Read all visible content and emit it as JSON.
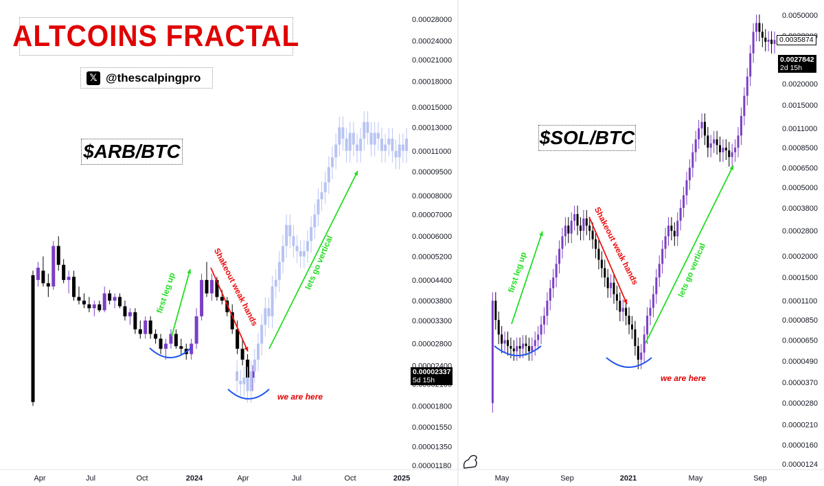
{
  "header": {
    "title": "ALTCOINS FRACTAL",
    "handle": "@thescalpingpro",
    "x_logo": "x-logo-icon"
  },
  "colors": {
    "title": "#e00000",
    "candle_up": "#7b3fc4",
    "candle_down": "#000000",
    "projection": "#b8c4f2",
    "arrow_up": "#22dd22",
    "arrow_down": "#ee1111",
    "bottom_arc": "#2255ee"
  },
  "chart_data": [
    {
      "type": "candlestick",
      "pair": "$ARB/BTC",
      "yscale": "log",
      "y_ticks": [
        "0.00028000",
        "0.00024000",
        "0.00021000",
        "0.00018000",
        "0.00015000",
        "0.00013000",
        "0.00011000",
        "0.00009500",
        "0.00008000",
        "0.00007000",
        "0.00006000",
        "0.00005200",
        "0.00004400",
        "0.00003800",
        "0.00003300",
        "0.00002800",
        "0.00002400",
        "0.00002100",
        "0.00001800",
        "0.00001550",
        "0.00001350",
        "0.00001180"
      ],
      "x_ticks": [
        "Apr",
        "Jul",
        "Oct",
        "2024",
        "Apr",
        "Jul",
        "Oct",
        "2025"
      ],
      "last_price": "0.00002337",
      "countdown": "5d 15h",
      "annotations": {
        "first_leg": "first leg up",
        "shakeout": "Shakeout weak hands",
        "vertical": "lets go vertical",
        "here": "we are here"
      },
      "candles_ohlc": [
        [
          4.55e-05,
          4.7e-05,
          1.8e-05,
          1.85e-05
        ],
        [
          4.4e-05,
          5e-05,
          4.2e-05,
          4.8e-05
        ],
        [
          4.7e-05,
          5.2e-05,
          4.2e-05,
          4.3e-05
        ],
        [
          4.3e-05,
          4.6e-05,
          3.9e-05,
          4.2e-05
        ],
        [
          4.2e-05,
          5.8e-05,
          4.1e-05,
          5.6e-05
        ],
        [
          5.6e-05,
          6e-05,
          4.7e-05,
          4.9e-05
        ],
        [
          4.9e-05,
          5.1e-05,
          4.3e-05,
          4.4e-05
        ],
        [
          4.4e-05,
          4.7e-05,
          4e-05,
          4.5e-05
        ],
        [
          4.5e-05,
          4.7e-05,
          3.8e-05,
          3.9e-05
        ],
        [
          3.9e-05,
          4.2e-05,
          3.7e-05,
          3.8e-05
        ],
        [
          3.8e-05,
          4e-05,
          3.6e-05,
          3.7e-05
        ],
        [
          3.7e-05,
          3.9e-05,
          3.5e-05,
          3.6e-05
        ],
        [
          3.6e-05,
          3.8e-05,
          3.4e-05,
          3.7e-05
        ],
        [
          3.7e-05,
          3.8e-05,
          3.5e-05,
          3.55e-05
        ],
        [
          3.55e-05,
          4.2e-05,
          3.5e-05,
          4e-05
        ],
        [
          4e-05,
          4.1e-05,
          3.7e-05,
          3.8e-05
        ],
        [
          3.8e-05,
          4e-05,
          3.6e-05,
          3.9e-05
        ],
        [
          3.9e-05,
          4e-05,
          3.6e-05,
          3.65e-05
        ],
        [
          3.65e-05,
          3.8e-05,
          3.3e-05,
          3.4e-05
        ],
        [
          3.4e-05,
          3.6e-05,
          3.2e-05,
          3.5e-05
        ],
        [
          3.5e-05,
          3.6e-05,
          3e-05,
          3.1e-05
        ],
        [
          3.1e-05,
          3.3e-05,
          2.9e-05,
          3e-05
        ],
        [
          3e-05,
          3.4e-05,
          2.9e-05,
          3.3e-05
        ],
        [
          3.3e-05,
          3.4e-05,
          2.9e-05,
          3e-05
        ],
        [
          3e-05,
          3.1e-05,
          2.8e-05,
          2.9e-05
        ],
        [
          2.9e-05,
          3e-05,
          2.6e-05,
          2.7e-05
        ],
        [
          2.7e-05,
          2.9e-05,
          2.5e-05,
          2.8e-05
        ],
        [
          2.8e-05,
          3.1e-05,
          2.7e-05,
          3e-05
        ],
        [
          3e-05,
          3.1e-05,
          2.7e-05,
          2.75e-05
        ],
        [
          2.75e-05,
          2.9e-05,
          2.6e-05,
          2.7e-05
        ],
        [
          2.7e-05,
          2.8e-05,
          2.5e-05,
          2.6e-05
        ],
        [
          2.6e-05,
          2.9e-05,
          2.5e-05,
          2.8e-05
        ],
        [
          2.8e-05,
          3.6e-05,
          2.7e-05,
          3.4e-05
        ],
        [
          3.4e-05,
          4.6e-05,
          3.3e-05,
          4.4e-05
        ],
        [
          4.4e-05,
          5e-05,
          3.9e-05,
          4e-05
        ],
        [
          4e-05,
          4.6e-05,
          3.8e-05,
          4.4e-05
        ],
        [
          4.4e-05,
          4.5e-05,
          3.8e-05,
          3.9e-05
        ],
        [
          3.9e-05,
          4.1e-05,
          3.7e-05,
          3.8e-05
        ],
        [
          3.8e-05,
          3.9e-05,
          3.4e-05,
          3.5e-05
        ],
        [
          3.5e-05,
          3.7e-05,
          3e-05,
          3.1e-05
        ],
        [
          3.1e-05,
          3.3e-05,
          2.6e-05,
          2.7e-05
        ],
        [
          2.7e-05,
          2.9e-05,
          2.4e-05,
          2.5e-05
        ],
        [
          2.5e-05,
          2.6e-05,
          2.1e-05,
          2.2e-05
        ],
        [
          2.2e-05,
          2.4e-05,
          2e-05,
          2.3e-05
        ]
      ],
      "projection_closes": [
        2.3e-05,
        2.15e-05,
        2.1e-05,
        2.2e-05,
        2e-05,
        2.3e-05,
        2.5e-05,
        2.8e-05,
        3.2e-05,
        3.6e-05,
        3.4e-05,
        4.2e-05,
        4.4e-05,
        5e-05,
        5.6e-05,
        6.5e-05,
        6e-05,
        5.6e-05,
        5.4e-05,
        5.2e-05,
        5.4e-05,
        5.8e-05,
        6.4e-05,
        7e-05,
        7.8e-05,
        8.2e-05,
        8.8e-05,
        9.8e-05,
        0.000105,
        0.000115,
        0.00013,
        0.00012,
        0.00011,
        0.000125,
        0.000115,
        0.00011,
        0.00012,
        0.000135,
        0.000125,
        0.000115,
        0.000125,
        0.00012,
        0.00011,
        0.000115,
        0.00012,
        0.00011,
        0.000105,
        0.000115,
        0.00011,
        0.00012
      ]
    },
    {
      "type": "candlestick",
      "pair": "$SOL/BTC",
      "yscale": "log",
      "y_ticks": [
        "0.0050000",
        "0.0038000",
        "0.0035874",
        "0.0027842",
        "0.0020000",
        "0.0015000",
        "0.0011000",
        "0.0008500",
        "0.0006500",
        "0.0005000",
        "0.0003800",
        "0.0002800",
        "0.0002000",
        "0.0001500",
        "0.0001100",
        "0.0000850",
        "0.0000650",
        "0.0000490",
        "0.0000370",
        "0.0000280",
        "0.0000210",
        "0.0000160",
        "0.0000124"
      ],
      "x_ticks": [
        "May",
        "Sep",
        "2021",
        "May",
        "Sep"
      ],
      "price_label_outline": "0.0035874",
      "last_price": "0.0027842",
      "countdown": "2d 15h",
      "annotations": {
        "first_leg": "first leg up",
        "shakeout": "Shakeout weak hands",
        "vertical": "lets go vertical",
        "here": "we are here"
      },
      "closes": [
        2.8e-05,
        0.00011,
        8.5e-05,
        7e-05,
        6.2e-05,
        6.5e-05,
        6e-05,
        5.8e-05,
        5.6e-05,
        6e-05,
        5.8e-05,
        6.2e-05,
        6e-05,
        5.6e-05,
        6e-05,
        6.5e-05,
        7e-05,
        8e-05,
        9e-05,
        0.00011,
        0.00013,
        0.00015,
        0.00018,
        0.00022,
        0.00026,
        0.0003,
        0.00027,
        0.00032,
        0.00035,
        0.0003,
        0.00028,
        0.00033,
        0.0003,
        0.00028,
        0.00025,
        0.00022,
        0.00019,
        0.00017,
        0.00015,
        0.00013,
        0.00014,
        0.00012,
        0.00011,
        9.5e-05,
        0.0001,
        9e-05,
        8e-05,
        7.5e-05,
        6e-05,
        5e-05,
        5.5e-05,
        7e-05,
        9e-05,
        0.0001,
        0.00012,
        0.00015,
        0.00018,
        0.00022,
        0.00026,
        0.0003,
        0.00028,
        0.00026,
        0.00032,
        0.00038,
        0.00045,
        0.00055,
        0.00065,
        0.0008,
        0.00095,
        0.0011,
        0.0012,
        0.001,
        0.00085,
        0.0009,
        0.00095,
        0.00088,
        0.0008,
        0.00085,
        0.00082,
        0.00075,
        0.0008,
        0.00085,
        0.001,
        0.0013,
        0.0017,
        0.0022,
        0.003,
        0.004,
        0.0045,
        0.004,
        0.0037,
        0.0035,
        0.0036,
        0.0034,
        0.0035874
      ]
    }
  ]
}
